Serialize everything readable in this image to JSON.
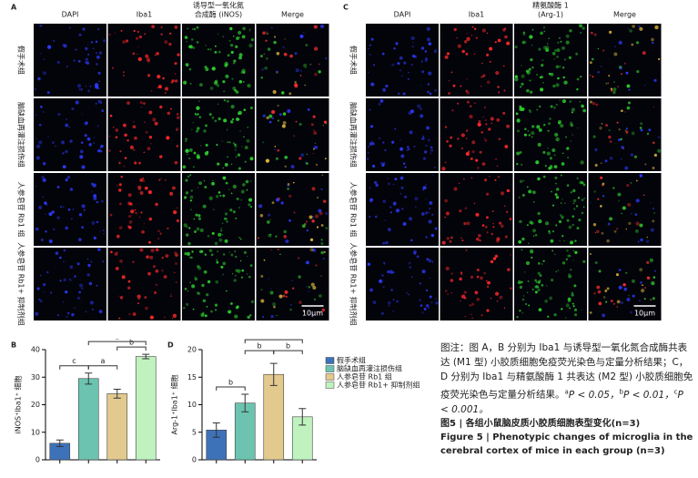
{
  "panel_A": {
    "label": "A",
    "columns": [
      "DAPI",
      "Iba1",
      "诱导型一氧化氮",
      "合成酶 (iNOS)",
      "Merge"
    ],
    "rows": [
      "假手术组",
      "脑缺血再灌注损伤组",
      "人参皂苷 Rb1 组",
      "人参皂苷 Rb1+ 抑制剂组"
    ],
    "scale_bar": "10μm"
  },
  "panel_C": {
    "label": "C",
    "columns": [
      "DAPI",
      "Iba1",
      "精氨酸酶 1",
      "(Arg-1)",
      "Merge"
    ],
    "rows": [
      "假手术组",
      "脑缺血再灌注损伤组",
      "人参皂苷 Rb1 组",
      "人参皂苷 Rb1+ 抑制剂组"
    ],
    "scale_bar": "10μm"
  },
  "legend": {
    "names": [
      "假手术组",
      "脑缺血再灌注损伤组",
      "人参皂苷 Rb1 组",
      "人参皂苷 Rb1+ 抑制剂组"
    ],
    "colors": [
      "#3d72b8",
      "#6cc4b0",
      "#e2c98e",
      "#bff2bf"
    ]
  },
  "chart_data": [
    {
      "type": "bar",
      "label": "B",
      "ylabel": "iNOS⁺Iba1⁺ 细胞",
      "values": [
        6,
        29.5,
        24,
        37.5
      ],
      "errors": [
        1.2,
        2,
        1.6,
        0.8
      ],
      "ylim": [
        0,
        40
      ],
      "yticks": [
        0,
        10,
        20,
        30,
        40
      ],
      "significance": [
        "c",
        "a",
        "b",
        "a"
      ]
    },
    {
      "type": "bar",
      "label": "D",
      "ylabel": "Arg-1⁺Iba1⁺ 细胞",
      "values": [
        5.4,
        10.3,
        15.5,
        7.8
      ],
      "errors": [
        1.3,
        1.6,
        2,
        1.5
      ],
      "ylim": [
        0,
        20
      ],
      "yticks": [
        0,
        5,
        10,
        15,
        20
      ],
      "significance": [
        "b",
        "b",
        "b",
        "a"
      ]
    }
  ],
  "caption": {
    "note": "图注：图 A，B 分别为 Iba1 与诱导型一氧化氮合成酶共表达 (M1 型) 小胶质细胞免疫荧光染色与定量分析结果；C，D 分别为 Iba1 与精氨酸酶 1 共表达 (M2 型) 小胶质细胞免疫荧光染色与定量分析结果。",
    "p_values": [
      {
        "sup": "a",
        "text": "P < 0.05，"
      },
      {
        "sup": "b",
        "text": "P < 0.01，"
      },
      {
        "sup": "c",
        "text": "P < 0.001。"
      }
    ],
    "title_cn": "图5 | 各组小鼠脑皮质小胶质细胞表型变化(n=3)",
    "title_en": "Figure 5 | Phenotypic changes of microglia in the cerebral cortex of mice in each group (n=3)"
  }
}
